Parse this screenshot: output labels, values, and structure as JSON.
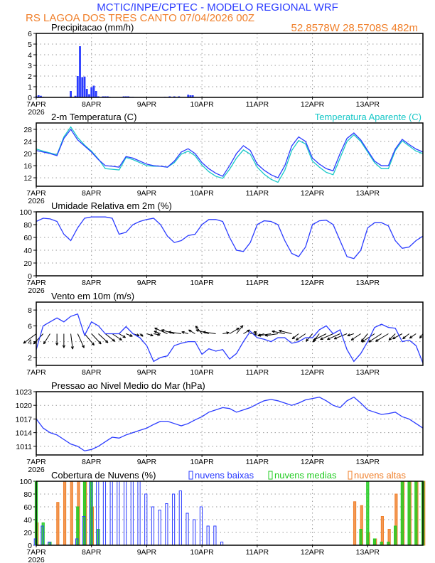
{
  "header": {
    "title": "MCTIC/INPE/CPTEC - MODELO REGIONAL WRF",
    "station": "RS LAGOA DOS TRES CANTO   07/04/2026 00Z",
    "location": "52.8578W 28.5708S 482m"
  },
  "colors": {
    "title": "#2b3cff",
    "orange": "#f07f2a",
    "blue": "#2b3cff",
    "cyan": "#19c8c8",
    "green": "#22cc22",
    "black": "#000000"
  },
  "x_axis": {
    "tick_labels": [
      "7APR",
      "8APR",
      "9APR",
      "10APR",
      "11APR",
      "12APR",
      "13APR"
    ],
    "year": "2026",
    "time_step_hours": 3
  },
  "chart_data": [
    {
      "type": "bar",
      "title": "Precipitacao (mm/h)",
      "ylim": [
        0,
        6
      ],
      "yticks": [
        0,
        1,
        2,
        3,
        4,
        5,
        6
      ],
      "grid": true,
      "series": [
        {
          "hours": [
            0,
            1,
            2,
            3,
            15,
            17,
            18,
            19,
            20,
            21,
            22,
            23,
            24,
            25,
            26,
            27,
            29,
            30,
            31,
            32,
            38,
            39,
            40,
            41,
            42,
            56,
            58,
            60,
            62,
            66,
            67,
            68
          ],
          "values": [
            0.1,
            0.2,
            0.15,
            0.05,
            0.6,
            0.15,
            2.0,
            4.8,
            1.9,
            1.95,
            0.8,
            0.3,
            0.95,
            1.1,
            0.6,
            0.1,
            0.1,
            0.1,
            0.1,
            0.05,
            0.1,
            0.1,
            0.1,
            0.05,
            0.05,
            0.05,
            0.1,
            0.1,
            0.1,
            0.25,
            0.2,
            0.2
          ]
        }
      ]
    },
    {
      "type": "line",
      "title": "2-m Temperatura (C)",
      "ylim": [
        9.2,
        30.1
      ],
      "yticks": [
        12,
        16,
        20,
        24,
        28
      ],
      "grid": true,
      "series": [
        {
          "values": [
            21,
            20.5,
            20,
            19.3,
            25,
            28,
            24.5,
            22.5,
            20.5,
            18,
            16,
            15.8,
            15.5,
            19,
            18.5,
            17.5,
            16.5,
            16,
            15.8,
            15.5,
            17.5,
            20.5,
            21.6,
            20,
            17,
            15,
            13.5,
            12.5,
            16,
            20,
            22.6,
            21,
            16.5,
            14.5,
            13,
            12,
            16,
            22.5,
            25.5,
            24,
            18.5,
            16.5,
            15,
            14.3,
            20,
            25,
            26.8,
            24.5,
            21,
            17.5,
            16,
            16,
            21.5,
            24.7,
            23,
            21.5,
            20.5
          ]
        },
        {
          "name": "Temperatura Aparente (C)",
          "values": [
            21.5,
            20.8,
            20.2,
            19.6,
            25.5,
            28.8,
            25.3,
            22.8,
            20.8,
            18.2,
            15,
            14.8,
            14.6,
            18.7,
            18,
            17,
            16,
            15.8,
            15.8,
            15.5,
            17,
            19.8,
            20.8,
            19.3,
            16.2,
            14,
            12.5,
            11.8,
            14.8,
            18.5,
            21.2,
            19.8,
            15.5,
            13.2,
            11.5,
            10.5,
            14.5,
            21,
            24.3,
            23.2,
            17.5,
            15.5,
            13.8,
            13,
            18.5,
            24,
            26.2,
            24,
            20.5,
            17,
            15,
            15,
            21,
            24.2,
            22.5,
            20.8,
            20
          ]
        }
      ]
    },
    {
      "type": "line",
      "title": "Umidade Relativa em 2m (%)",
      "ylim": [
        0,
        100
      ],
      "yticks": [
        0,
        20,
        40,
        60,
        80,
        100
      ],
      "grid": true,
      "series": [
        {
          "values": [
            85,
            90,
            89,
            85,
            65,
            55,
            75,
            90,
            92,
            92,
            92,
            90,
            65,
            68,
            80,
            85,
            88,
            90,
            80,
            62,
            52,
            55,
            63,
            65,
            80,
            88,
            88,
            85,
            60,
            40,
            38,
            52,
            80,
            86,
            85,
            80,
            55,
            35,
            30,
            45,
            80,
            86,
            87,
            80,
            55,
            30,
            27,
            40,
            75,
            83,
            83,
            78,
            55,
            43,
            45,
            55,
            62
          ]
        }
      ]
    },
    {
      "type": "line+vectors",
      "title": "Vento em 10m (m/s)",
      "ylim": [
        1,
        9
      ],
      "yticks": [
        2,
        4,
        6,
        8
      ],
      "grid": true,
      "vector_baseline": 5,
      "series": [
        {
          "values": [
            3,
            6,
            6.5,
            7,
            6.5,
            7.2,
            7.5,
            4.8,
            6.5,
            6,
            5,
            5,
            5,
            5.9,
            5,
            4.5,
            3.5,
            1.5,
            2,
            2.2,
            3.5,
            3.8,
            4,
            4,
            2.4,
            3.1,
            2.8,
            3,
            1.8,
            2.5,
            4,
            5.3,
            4.5,
            4.3,
            4,
            4.5,
            4.5,
            3.8,
            4,
            4.5,
            4.5,
            5.5,
            6,
            5,
            5.5,
            3,
            1.5,
            2.5,
            4,
            5.8,
            6.2,
            5.8,
            5.7,
            4,
            4.2,
            3.5,
            1.3
          ]
        }
      ],
      "vectors": {
        "u": [
          -2,
          -1.5,
          -1,
          0,
          0,
          0.3,
          1,
          1.5,
          1.5,
          1.5,
          1.5,
          1.5,
          1,
          1,
          1,
          0.5,
          1,
          1,
          -1,
          -2,
          -2,
          -2,
          -1,
          -1,
          -1,
          -2,
          -2,
          1,
          1.5,
          1,
          1,
          1,
          -0.5,
          -1,
          -2,
          -2,
          -2,
          -2,
          -1,
          -1.5,
          -1,
          -1,
          -2,
          -2,
          -2,
          -2,
          -1,
          -1.5,
          -1,
          -2,
          -2,
          -2,
          -1,
          -1.5,
          -1,
          -1,
          -0.5
        ],
        "v": [
          -1.5,
          -1.6,
          -1.6,
          -1.8,
          -2.2,
          -2.4,
          -2.2,
          -1.8,
          -1.6,
          -1.4,
          -1.2,
          -1,
          -0.6,
          -0.4,
          -0.3,
          -0.4,
          -0.3,
          -0.2,
          0.4,
          0.9,
          0.6,
          0.3,
          0.3,
          0.6,
          1.2,
          0.6,
          0.3,
          0.2,
          0.9,
          1.3,
          0.6,
          0.3,
          -0.2,
          -0.3,
          -0.3,
          -0.3,
          0.4,
          0.5,
          -0.8,
          -1,
          -1.2,
          -1.3,
          -1,
          -0.9,
          -0.9,
          -0.8,
          -0.3,
          -1,
          -1.2,
          -1.3,
          -1.3,
          -1.2,
          -1,
          -0.8,
          -0.8,
          -0.7,
          -0.7
        ]
      }
    },
    {
      "type": "line",
      "title": "Pressao ao Nivel Medio do Mar (hPa)",
      "ylim": [
        1009.1,
        1023
      ],
      "yticks": [
        1011,
        1014,
        1017,
        1020,
        1023
      ],
      "grid": true,
      "series": [
        {
          "values": [
            1017,
            1015,
            1014,
            1013.5,
            1012.5,
            1011.5,
            1011,
            1010,
            1010.3,
            1011,
            1012,
            1013,
            1012.8,
            1013.5,
            1014,
            1014.5,
            1015,
            1015.8,
            1016.5,
            1016.5,
            1016,
            1015.5,
            1016,
            1016.8,
            1017.5,
            1018.5,
            1019,
            1019.5,
            1019.3,
            1018.5,
            1019,
            1019.5,
            1020.3,
            1021,
            1021.3,
            1021,
            1020.5,
            1020,
            1020.5,
            1021.2,
            1021.5,
            1021.8,
            1021,
            1020,
            1019.5,
            1021,
            1021.8,
            1020.5,
            1019,
            1018.5,
            1018,
            1018.2,
            1018.5,
            1017.5,
            1017,
            1016,
            1015
          ]
        }
      ]
    },
    {
      "type": "bar",
      "title": "Cobertura de Nuvens (%)",
      "ylim": [
        0,
        100
      ],
      "yticks": [
        0,
        20,
        40,
        60,
        80,
        100
      ],
      "grid": true,
      "legend": "top",
      "series": [
        {
          "name": "nuvens baixas",
          "values": [
            10,
            30,
            5,
            0,
            0,
            0,
            10,
            45,
            100,
            100,
            100,
            100,
            100,
            100,
            100,
            100,
            80,
            60,
            55,
            65,
            80,
            85,
            50,
            40,
            60,
            30,
            30,
            5,
            0,
            0,
            0,
            0,
            0,
            0,
            0,
            0,
            0,
            0,
            0,
            0,
            0,
            0,
            0,
            0,
            0,
            0,
            0,
            0,
            0,
            0,
            0,
            0,
            0,
            0,
            0,
            0,
            0
          ]
        },
        {
          "name": "nuvens medias",
          "values": [
            100,
            35,
            5,
            0,
            0,
            0,
            60,
            100,
            100,
            25,
            0,
            0,
            0,
            0,
            0,
            0,
            0,
            0,
            0,
            0,
            0,
            0,
            0,
            0,
            0,
            0,
            0,
            0,
            0,
            0,
            0,
            0,
            0,
            0,
            0,
            0,
            0,
            0,
            0,
            0,
            0,
            0,
            0,
            0,
            0,
            0,
            0,
            25,
            100,
            10,
            5,
            5,
            30,
            100,
            100,
            100,
            100
          ]
        },
        {
          "name": "nuvens altas",
          "values": [
            35,
            0,
            0,
            67,
            100,
            100,
            100,
            100,
            60,
            0,
            0,
            0,
            0,
            0,
            0,
            0,
            0,
            0,
            0,
            0,
            0,
            0,
            0,
            0,
            0,
            0,
            0,
            0,
            0,
            0,
            0,
            0,
            0,
            0,
            0,
            0,
            0,
            0,
            0,
            0,
            0,
            0,
            0,
            0,
            0,
            0,
            68,
            62,
            20,
            10,
            45,
            25,
            80,
            100,
            100,
            100,
            100
          ]
        }
      ]
    }
  ]
}
